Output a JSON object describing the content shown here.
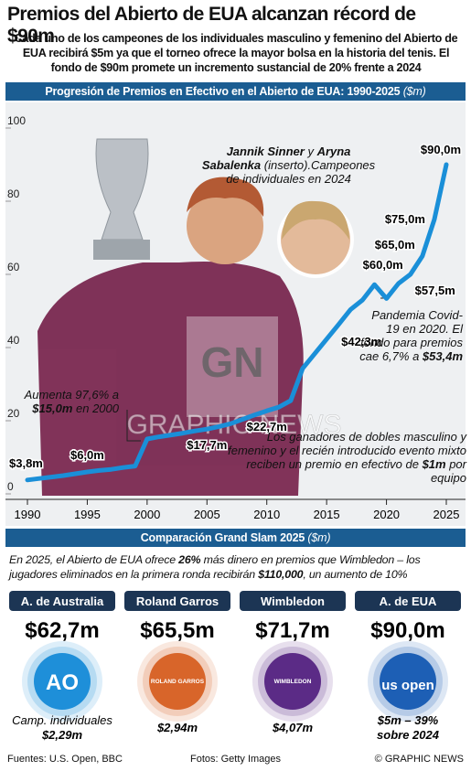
{
  "header": {
    "title": "Premios del Abierto de EUA alcanzan récord de $90m",
    "subtitle": "Cada uno de los campeones de los individuales masculino y femenino del Abierto de EUA recibirá $5m ya que el torneo ofrece la mayor bolsa en la historia del tenis. El fondo de $90m promete un incremento sustancial de 20% frente a 2024"
  },
  "chart_data": {
    "type": "line",
    "title": "Progresión de  Premios en Efectivo en el Abierto de EUA: 1990-2025",
    "unit": "($m)",
    "x": [
      1990,
      1991,
      1992,
      1993,
      1994,
      1995,
      1996,
      1997,
      1998,
      1999,
      2000,
      2001,
      2002,
      2003,
      2004,
      2005,
      2006,
      2007,
      2008,
      2009,
      2010,
      2011,
      2012,
      2013,
      2014,
      2015,
      2016,
      2017,
      2018,
      2019,
      2020,
      2021,
      2022,
      2023,
      2024,
      2025
    ],
    "values": [
      3.8,
      4.2,
      4.6,
      5.0,
      5.5,
      6.0,
      6.4,
      6.7,
      7.2,
      7.6,
      15.0,
      15.6,
      16.1,
      16.6,
      17.2,
      17.7,
      18.4,
      19.2,
      20.4,
      21.6,
      22.7,
      23.7,
      25.5,
      34.3,
      38.3,
      42.3,
      46.3,
      50.4,
      53.0,
      57.2,
      53.4,
      57.5,
      60.0,
      65.0,
      75.0,
      90.0
    ],
    "value_labels": [
      "$3,8m",
      null,
      null,
      null,
      null,
      "$6,0m",
      null,
      null,
      null,
      null,
      null,
      null,
      null,
      null,
      null,
      "$17,7m",
      null,
      null,
      null,
      null,
      "$22,7m",
      null,
      null,
      null,
      null,
      "$42,3m",
      null,
      null,
      null,
      null,
      null,
      "$57,5m",
      "$60,0m",
      "$65,0m",
      "$75,0m",
      "$90,0m"
    ],
    "color": "#1a8fd8",
    "xlim": [
      1990,
      2025
    ],
    "xticks": [
      1990,
      1995,
      2000,
      2005,
      2010,
      2015,
      2020,
      2025
    ],
    "ylim": [
      0,
      100
    ],
    "yticks": [
      0,
      20,
      40,
      60,
      80,
      100
    ],
    "grid": false,
    "watermark": "GRAPHIC NEWS",
    "logo": "GN",
    "annotations": {
      "increase_2000": [
        {
          "text": "Aumenta 97,6% a ",
          "bold": false
        },
        {
          "text": "$15,0m",
          "bold": true
        },
        {
          "text": " en 2000",
          "bold": false
        }
      ],
      "champions": [
        {
          "text": "Jannik Sinner",
          "bold": true
        },
        {
          "text": " y ",
          "bold": false
        },
        {
          "text": "Aryna Sabalenka",
          "bold": true
        },
        {
          "text": " (inserto).Campeones de individuales en 2024",
          "bold": false
        }
      ],
      "pandemic": [
        {
          "text": "Pandemia Covid-19 en 2020. El fondo para premios cae 6,7% a ",
          "bold": false
        },
        {
          "text": "$53,4m",
          "bold": true
        }
      ],
      "doubles": [
        {
          "text": "Los ganadores de dobles masculino y femenino y el recién introducido evento mixto reciben un premio en efectivo de ",
          "bold": false
        },
        {
          "text": "$1m",
          "bold": true
        },
        {
          "text": " por equipo",
          "bold": false
        }
      ]
    }
  },
  "comparison": {
    "title": "Comparación Grand Slam 2025",
    "unit": "($m)",
    "intro": [
      {
        "text": "En 2025, el Abierto de EUA ofrece ",
        "bold": false
      },
      {
        "text": "26%",
        "bold": true
      },
      {
        "text": " más dinero en premios que Wimbledon – los jugadores eliminados en la primera ronda recibirán ",
        "bold": false
      },
      {
        "text": "$110,000",
        "bold": true
      },
      {
        "text": ", un aumento de 10%",
        "bold": false
      }
    ],
    "cards": [
      {
        "name": "A. de Australia",
        "total": "$62,7m",
        "logo": "AO",
        "color": "#1e8fd9",
        "notes": [
          {
            "text": "Camp. individuales",
            "bold": false
          },
          {
            "text": "$2,29m",
            "bold": true
          }
        ]
      },
      {
        "name": "Roland Garros",
        "total": "$65,5m",
        "logo": "ROLAND GARROS",
        "color": "#d8652a",
        "notes": [
          {
            "text": "$2,94m",
            "bold": true
          }
        ]
      },
      {
        "name": "Wimbledon",
        "total": "$71,7m",
        "logo": "WIMBLEDON",
        "color": "#5b2b86",
        "notes": [
          {
            "text": "$4,07m",
            "bold": true
          }
        ]
      },
      {
        "name": "A. de EUA",
        "total": "$90,0m",
        "logo": "us open",
        "color": "#1d5fb5",
        "notes": [
          {
            "text": "$5m – 39%",
            "bold": true
          },
          {
            "text": "sobre 2024",
            "bold": true
          }
        ]
      }
    ]
  },
  "footer": {
    "sources": "Fuentes: U.S. Open, BBC",
    "photos": "Fotos: Getty Images",
    "credit": "© GRAPHIC NEWS"
  }
}
